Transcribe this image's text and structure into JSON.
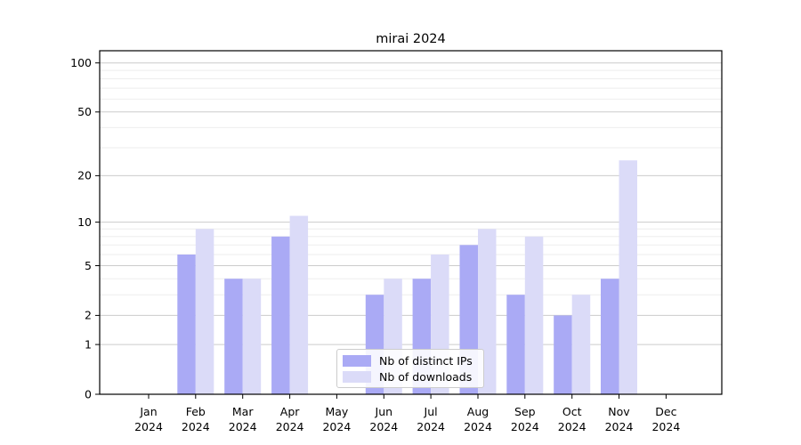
{
  "title": "mirai 2024",
  "colors": {
    "ips_bar": "#aaaaf5",
    "downloads_bar": "#dbdbf8",
    "grid_major": "#cccccc",
    "grid_minor": "#eeeeee",
    "spine": "#000000",
    "text": "#000000",
    "legend_border": "#cccccc"
  },
  "legend": {
    "items": [
      {
        "label": "Nb of distinct IPs",
        "color_key": "ips_bar"
      },
      {
        "label": "Nb of downloads",
        "color_key": "downloads_bar"
      }
    ]
  },
  "chart_data": {
    "type": "bar",
    "title": "mirai 2024",
    "categories": [
      "Jan",
      "Feb",
      "Mar",
      "Apr",
      "May",
      "Jun",
      "Jul",
      "Aug",
      "Sep",
      "Oct",
      "Nov",
      "Dec"
    ],
    "x_tick_second_line": "2024",
    "series": [
      {
        "name": "Nb of distinct IPs",
        "color_key": "ips_bar",
        "values": [
          0,
          6,
          4,
          8,
          0,
          3,
          4,
          7,
          3,
          2,
          4,
          0
        ]
      },
      {
        "name": "Nb of downloads",
        "color_key": "downloads_bar",
        "values": [
          0,
          9,
          4,
          11,
          0,
          4,
          6,
          9,
          8,
          3,
          25,
          0
        ]
      }
    ],
    "xlabel": "",
    "ylabel": "",
    "y_scale": "log10(1+v)",
    "ylim": [
      0,
      118
    ],
    "y_ticks_major": [
      0,
      1,
      2,
      5,
      10,
      20,
      50,
      100
    ],
    "y_ticks_minor": [
      3,
      4,
      6,
      7,
      8,
      9,
      30,
      40,
      60,
      70,
      80,
      90
    ],
    "grid": "on",
    "legend_position": "lower-center-inside"
  }
}
